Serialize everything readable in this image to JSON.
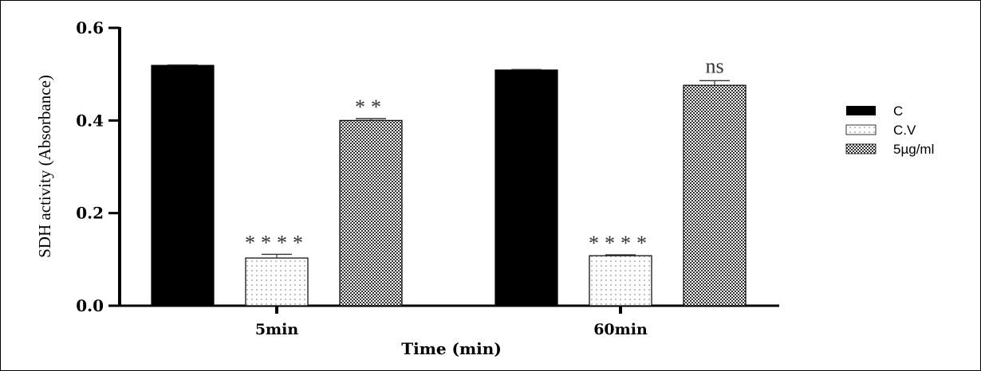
{
  "chart_data": {
    "type": "bar",
    "title": "",
    "xlabel": "Time (min)",
    "ylabel": "SDH activity (Absorbance)",
    "ylim": [
      0,
      0.6
    ],
    "yticks": [
      "0.0",
      "0.2",
      "0.4",
      "0.6"
    ],
    "categories": [
      "5min",
      "60min"
    ],
    "grid": false,
    "legend_position": "right",
    "series": [
      {
        "name": "C",
        "fill": "solid-black",
        "values": [
          0.519,
          0.509
        ],
        "errors": [
          0.001,
          0.001
        ],
        "annotations": [
          "",
          ""
        ]
      },
      {
        "name": "C.V",
        "fill": "dotted",
        "values": [
          0.103,
          0.108
        ],
        "errors": [
          0.008,
          0.002
        ],
        "annotations": [
          "****",
          "****"
        ]
      },
      {
        "name": "5µg/ml",
        "fill": "checkered",
        "values": [
          0.4,
          0.476
        ],
        "errors": [
          0.004,
          0.01
        ],
        "annotations": [
          "**",
          "ns"
        ]
      }
    ]
  }
}
